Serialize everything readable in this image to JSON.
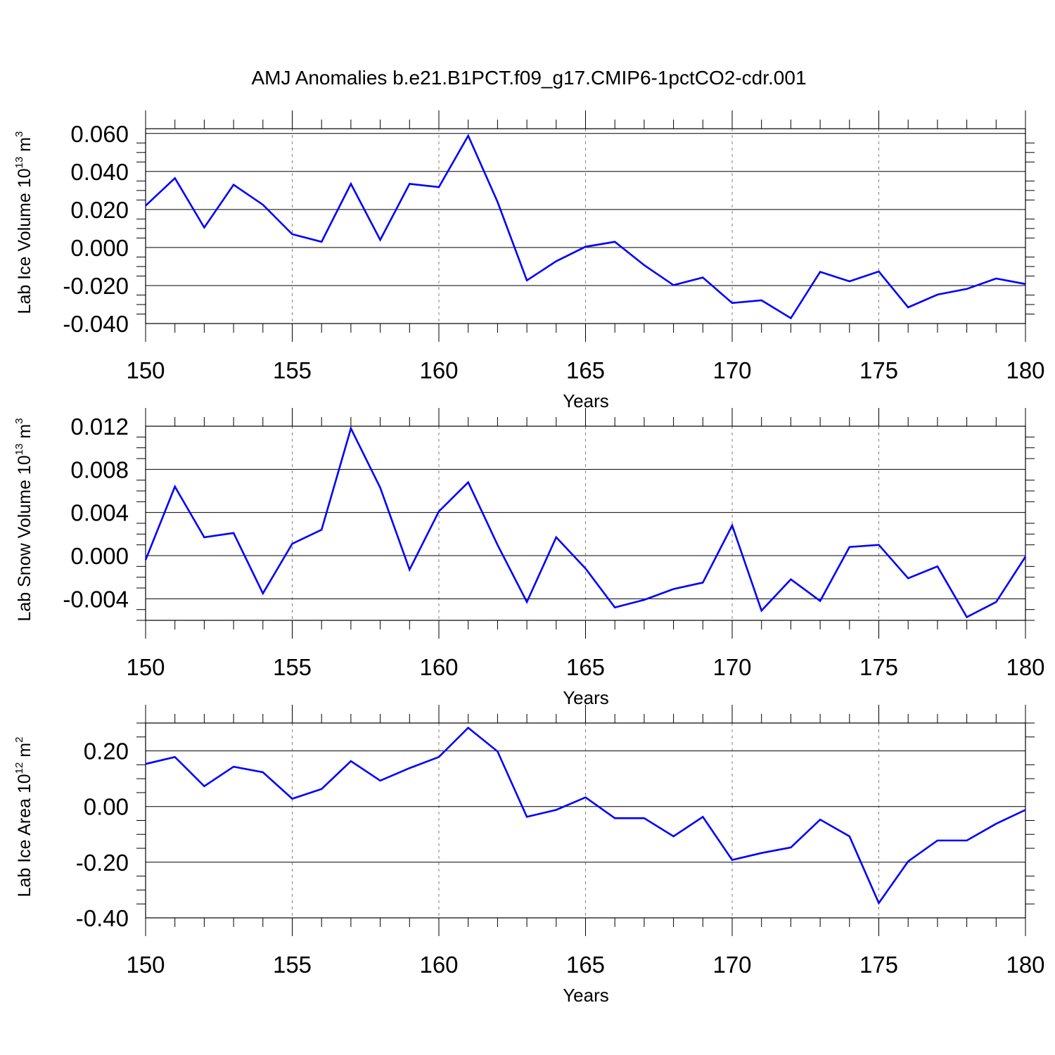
{
  "title": "AMJ Anomalies b.e21.B1PCT.f09_g17.CMIP6-1pctCO2-cdr.001",
  "colors": {
    "line": "#0000ff",
    "axis": "#000000",
    "grid": "#808080"
  },
  "chart_data": [
    {
      "type": "line",
      "xlabel": "Years",
      "ylabel": {
        "prefix": "Lab Ice Volume 10",
        "exp": "13",
        "unit": " m",
        "unit_exp": "3"
      },
      "xlim": [
        150,
        180
      ],
      "ylim": [
        -0.04,
        0.0625
      ],
      "xticks": [
        "150",
        "155",
        "160",
        "165",
        "170",
        "175",
        "180"
      ],
      "yticks": [
        {
          "v": 0.06,
          "label": "0.060"
        },
        {
          "v": 0.04,
          "label": "0.040"
        },
        {
          "v": 0.02,
          "label": "0.020"
        },
        {
          "v": 0.0,
          "label": "0.000"
        },
        {
          "v": -0.02,
          "label": "-0.020"
        },
        {
          "v": -0.04,
          "label": "-0.040"
        }
      ],
      "grid": "vertical-dashed",
      "x": [
        150,
        151,
        152,
        153,
        154,
        155,
        156,
        157,
        158,
        159,
        160,
        161,
        162,
        163,
        164,
        165,
        166,
        167,
        168,
        169,
        170,
        171,
        172,
        173,
        174,
        175,
        176,
        177,
        178,
        179,
        180
      ],
      "values": [
        0.022,
        0.0365,
        0.0105,
        0.033,
        0.0225,
        0.007,
        0.003,
        0.0335,
        0.004,
        0.0335,
        0.0318,
        0.0588,
        0.024,
        -0.0173,
        -0.0072,
        0.0004,
        0.003,
        -0.0093,
        -0.0198,
        -0.0158,
        -0.0292,
        -0.0278,
        -0.0372,
        -0.0128,
        -0.0178,
        -0.0126,
        -0.0315,
        -0.0248,
        -0.0218,
        -0.0163,
        -0.0192
      ]
    },
    {
      "type": "line",
      "xlabel": "Years",
      "ylabel": {
        "prefix": "Lab Snow Volume 10",
        "exp": "13",
        "unit": " m",
        "unit_exp": "3"
      },
      "xlim": [
        150,
        180
      ],
      "ylim": [
        -0.006,
        0.012
      ],
      "xticks": [
        "150",
        "155",
        "160",
        "165",
        "170",
        "175",
        "180"
      ],
      "yticks": [
        {
          "v": 0.012,
          "label": "0.012"
        },
        {
          "v": 0.008,
          "label": "0.008"
        },
        {
          "v": 0.004,
          "label": "0.004"
        },
        {
          "v": 0.0,
          "label": "0.000"
        },
        {
          "v": -0.004,
          "label": "-0.004"
        }
      ],
      "grid": "vertical-dashed",
      "x": [
        150,
        151,
        152,
        153,
        154,
        155,
        156,
        157,
        158,
        159,
        160,
        161,
        162,
        163,
        164,
        165,
        166,
        167,
        168,
        169,
        170,
        171,
        172,
        173,
        174,
        175,
        176,
        177,
        178,
        179,
        180
      ],
      "values": [
        -0.0004,
        0.0064,
        0.0017,
        0.0021,
        -0.0035,
        0.0011,
        0.0024,
        0.0118,
        0.0063,
        -0.0013,
        0.0041,
        0.0068,
        0.001,
        -0.0043,
        0.0017,
        -0.0012,
        -0.0048,
        -0.0041,
        -0.0031,
        -0.0025,
        0.0028,
        -0.0051,
        -0.0022,
        -0.0042,
        0.0008,
        0.001,
        -0.0021,
        -0.001,
        -0.0057,
        -0.0043,
        -0.0001
      ]
    },
    {
      "type": "line",
      "xlabel": "Years",
      "ylabel": {
        "prefix": "Lab Ice Area 10",
        "exp": "12",
        "unit": " m",
        "unit_exp": "2"
      },
      "xlim": [
        150,
        180
      ],
      "ylim": [
        -0.4,
        0.3
      ],
      "xticks": [
        "150",
        "155",
        "160",
        "165",
        "170",
        "175",
        "180"
      ],
      "yticks": [
        {
          "v": 0.2,
          "label": "0.20"
        },
        {
          "v": 0.0,
          "label": "0.00"
        },
        {
          "v": -0.2,
          "label": "-0.20"
        },
        {
          "v": -0.4,
          "label": "-0.40"
        }
      ],
      "grid": "vertical-dashed",
      "x": [
        150,
        151,
        152,
        153,
        154,
        155,
        156,
        157,
        158,
        159,
        160,
        161,
        162,
        163,
        164,
        165,
        166,
        167,
        168,
        169,
        170,
        171,
        172,
        173,
        174,
        175,
        176,
        177,
        178,
        179,
        180
      ],
      "values": [
        0.153,
        0.178,
        0.073,
        0.143,
        0.123,
        0.028,
        0.063,
        0.163,
        0.093,
        0.138,
        0.178,
        0.283,
        0.198,
        -0.037,
        -0.012,
        0.033,
        -0.042,
        -0.042,
        -0.107,
        -0.037,
        -0.192,
        -0.167,
        -0.147,
        -0.047,
        -0.107,
        -0.347,
        -0.197,
        -0.122,
        -0.122,
        -0.062,
        -0.012
      ]
    }
  ]
}
